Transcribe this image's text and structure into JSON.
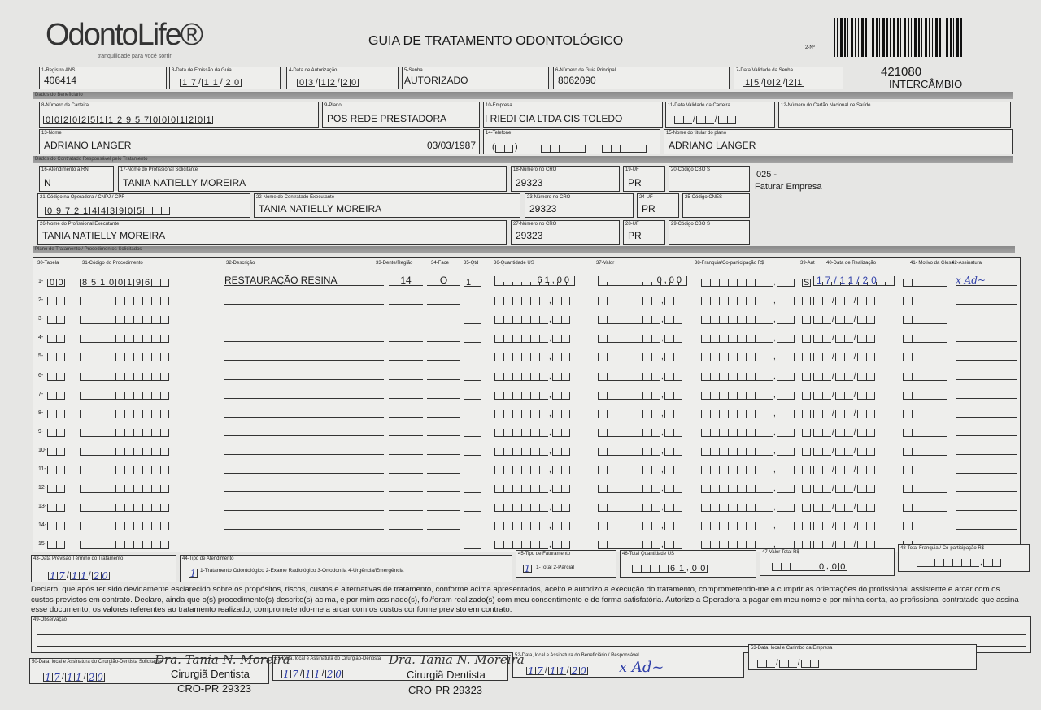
{
  "header": {
    "logo": "OdontoLife®",
    "tagline": "tranquilidade para você sorrir",
    "title": "GUIA DE TRATAMENTO ODONTOLÓGICO",
    "numero_label": "2-Nº",
    "guia_numero": "421080",
    "tipo": "INTERCÂMBIO"
  },
  "row1": {
    "registro_ans": {
      "label": "1-Registro ANS",
      "value": "406414"
    },
    "data_emissao": {
      "label": "3-Data de Emissão da Guia",
      "value": "17/11/20"
    },
    "data_autorizacao": {
      "label": "4-Data de Autorização",
      "value": "03/12/20"
    },
    "senha": {
      "label": "5-Senha",
      "value": "AUTORIZADO"
    },
    "guia_principal": {
      "label": "6-Número da Guia Principal",
      "value": "8062090"
    },
    "validade_senha": {
      "label": "7-Data Validade da Senha",
      "value": "15/02/21"
    }
  },
  "sections": {
    "beneficiario": "Dados do Beneficiário",
    "contratado": "Dados do Contratado Responsável pelo Tratamento",
    "plano": "Plano de Tratamento / Procedimentos Solicitados"
  },
  "beneficiario": {
    "carteira": {
      "label": "8-Número da Carteira",
      "value": "0020251129570001201"
    },
    "plano": {
      "label": "9-Plano",
      "value": "POS REDE PRESTADORA"
    },
    "empresa": {
      "label": "10-Empresa",
      "value": "I RIEDI  CIA LTDA  CIS TOLEDO"
    },
    "validade_carteira": {
      "label": "11-Data Validade da Carteira",
      "value": "//"
    },
    "cartao_nacional": {
      "label": "12-Número do Cartão Nacional de Saúde",
      "value": ""
    },
    "nome": {
      "label": "13-Nome",
      "value": "ADRIANO LANGER",
      "nascimento": "03/03/1987"
    },
    "telefone": {
      "label": "14-Telefone",
      "value": ""
    },
    "titular": {
      "label": "15-Nome do titular do plano",
      "value": "ADRIANO LANGER"
    }
  },
  "contratado": {
    "atendimento_rn": {
      "label": "16-Atendimento a RN",
      "value": "N"
    },
    "profissional_solicitante": {
      "label": "17-Nome do Profissional Solicitante",
      "value": "TANIA NATIELLY MOREIRA"
    },
    "cro_18": {
      "label": "18-Número no CRO",
      "value": "29323"
    },
    "uf_19": {
      "label": "19-UF",
      "value": "PR"
    },
    "cbo_20": {
      "label": "20-Código CBO S",
      "value": ""
    },
    "nota_codigo": "025 -",
    "nota_faturar": "Faturar Empresa",
    "codigo_operadora": {
      "label": "21-Código na Operadora / CNPJ / CPF",
      "value": "09721443905"
    },
    "contratado_executante": {
      "label": "22-Nome do Contratado Executante",
      "value": "TANIA NATIELLY MOREIRA"
    },
    "cro_23": {
      "label": "23-Número no CRO",
      "value": "29323"
    },
    "uf_24": {
      "label": "24-UF",
      "value": "PR"
    },
    "cnes_25": {
      "label": "25-Código CNES",
      "value": ""
    },
    "profissional_executante": {
      "label": "26-Nome do Profissional Executante",
      "value": "TANIA NATIELLY MOREIRA"
    },
    "cro_27": {
      "label": "27-Número no CRO",
      "value": "29323"
    },
    "uf_28": {
      "label": "28-UF",
      "value": "PR"
    },
    "cbo_29": {
      "label": "29-Código CBO S",
      "value": ""
    }
  },
  "table": {
    "headers": [
      "30-Tabela",
      "31-Código do Procedimento",
      "32-Descrição",
      "33-Dente/Região",
      "34-Face",
      "35-Qtd",
      "36-Quantidade US",
      "37-Valor",
      "38-Franquia/Co-participação R$",
      "39-Aut",
      "40-Data de Realização",
      "41- Motivo da Glosa",
      "42-Assinatura"
    ],
    "rows": [
      {
        "num": "1-",
        "tabela": "00",
        "codigo": "85100196",
        "descricao": "RESTAURAÇÃO RESINA",
        "dente": "14",
        "face": "O",
        "qtd": "1",
        "qtd_us": "61,00",
        "valor": "0,00",
        "franquia": ",",
        "aut": "S",
        "data": "17/11/20",
        "glosa": "",
        "assinatura": "x Ad~"
      },
      {
        "num": "2-"
      },
      {
        "num": "3-"
      },
      {
        "num": "4-"
      },
      {
        "num": "5-"
      },
      {
        "num": "6-"
      },
      {
        "num": "7-"
      },
      {
        "num": "8-"
      },
      {
        "num": "9-"
      },
      {
        "num": "10-"
      },
      {
        "num": "11-"
      },
      {
        "num": "12-"
      },
      {
        "num": "13-"
      },
      {
        "num": "14-"
      },
      {
        "num": "15-"
      }
    ]
  },
  "totais": {
    "previsao": {
      "label": "43-Data Previsão Término do Tratamento",
      "value": "17/11/20"
    },
    "tipo_atendimento": {
      "label": "44-Tipo de Atendimento",
      "value": "1",
      "options": "1-Tratamento Odontológico  2-Exame Radiológico  3-Ortodontia  4-Urgência/Emergência"
    },
    "tipo_faturamento": {
      "label": "45-Tipo de Faturamento",
      "value": "1",
      "options": "1-Total  2-Parcial"
    },
    "total_us": {
      "label": "46-Total Quantidade US",
      "value": "61,00"
    },
    "valor_total": {
      "label": "47-Valor Total R$",
      "value": "0,00"
    },
    "total_franquia": {
      "label": "48-Total Franquia / Co-participação R$",
      "value": ","
    }
  },
  "declaracao": "Declaro, que após ter sido devidamente esclarecido sobre os propósitos, riscos, custos e alternativas de tratamento, conforme acima apresentados, aceito e autorizo a execução do tratamento, comprometendo-me a cumprir as orientações do profissional assistente e arcar com os custos previstos em contrato. Declaro, ainda que o(s) procedimento(s) descrito(s) acima, e por mim assinado(s), foi/foram realizado(s) com meu consentimento e de forma satisfatória. Autorizo a Operadora a pagar em meu nome e por minha conta, ao profissional contratado que assina esse documento, os valores referentes ao tratamento realizado, comprometendo-me a arcar com os custos conforme previsto em contrato.",
  "observacao": {
    "label": "49-Observação",
    "value": ""
  },
  "assinaturas": {
    "a50": {
      "label": "50-Data, local e Assinatura do Cirurgião-Dentista Solicitante",
      "date": "17/11/20"
    },
    "a51": {
      "label": "51-Data, local e Assinatura do Cirurgião-Dentista",
      "date": "17/11/20"
    },
    "a52": {
      "label": "52-Data, local e Assinatura do Beneficiário / Responsável",
      "date": "17/11/20",
      "sig": "x Ad~"
    },
    "a53": {
      "label": "53-Data, local e Carimbo da Empresa",
      "date": "//"
    },
    "stamp": {
      "name": "Dra. Tania N. Moreira",
      "role": "Cirurgiã Dentista",
      "cro": "CRO-PR 29323"
    }
  }
}
